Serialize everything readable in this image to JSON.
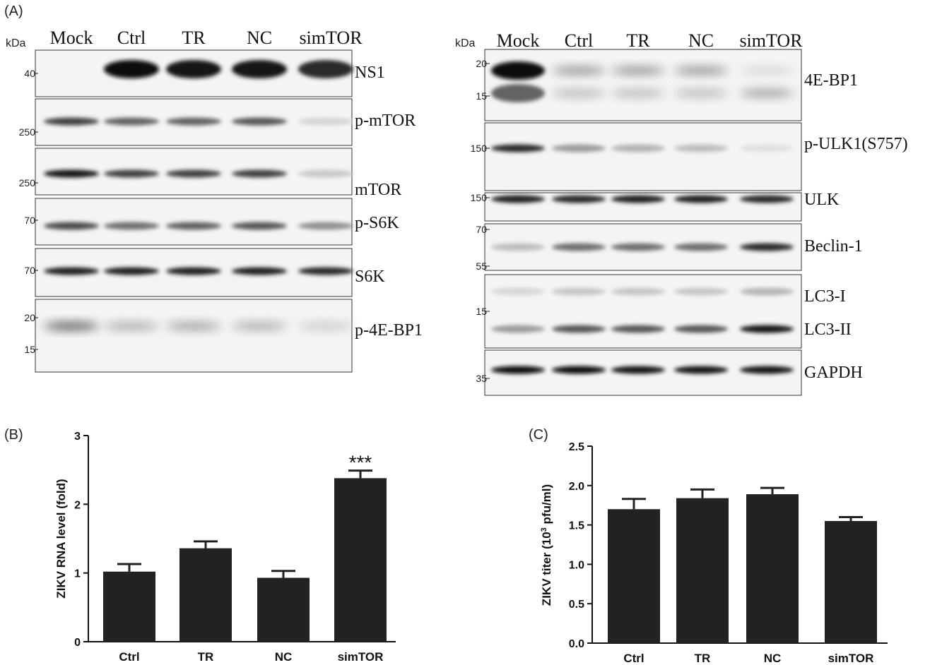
{
  "panels": {
    "a": {
      "label": "(A)"
    },
    "b": {
      "label": "(B)"
    },
    "c": {
      "label": "(C)"
    }
  },
  "western_left": {
    "kda_label": "kDa",
    "lanes": [
      "Mock",
      "Ctrl",
      "TR",
      "NC",
      "simTOR"
    ],
    "blots": [
      {
        "name": "NS1",
        "markers": [
          {
            "label": "40",
            "value": 40
          }
        ],
        "intensity": [
          0.0,
          1.0,
          0.95,
          0.95,
          0.85
        ]
      },
      {
        "name": "p-mTOR",
        "markers": [
          {
            "label": "250",
            "value": 250
          }
        ],
        "intensity": [
          0.75,
          0.6,
          0.6,
          0.65,
          0.1
        ]
      },
      {
        "name": "mTOR",
        "markers": [
          {
            "label": "250",
            "value": 250
          }
        ],
        "intensity": [
          0.95,
          0.75,
          0.75,
          0.75,
          0.15
        ]
      },
      {
        "name": "p-S6K",
        "markers": [
          {
            "label": "70",
            "value": 70
          }
        ],
        "intensity": [
          0.7,
          0.55,
          0.6,
          0.65,
          0.4
        ]
      },
      {
        "name": "S6K",
        "markers": [
          {
            "label": "70",
            "value": 70
          }
        ],
        "intensity": [
          0.9,
          0.9,
          0.9,
          0.9,
          0.85
        ]
      },
      {
        "name": "p-4E-BP1",
        "markers": [
          {
            "label": "20",
            "value": 20
          },
          {
            "label": "15",
            "value": 15
          }
        ],
        "intensity": [
          0.65,
          0.3,
          0.35,
          0.3,
          0.4
        ]
      }
    ]
  },
  "western_right": {
    "kda_label": "kDa",
    "lanes": [
      "Mock",
      "Ctrl",
      "TR",
      "NC",
      "simTOR"
    ],
    "blots": [
      {
        "name": "4E-BP1",
        "markers": [
          {
            "label": "20",
            "value": 20
          },
          {
            "label": "15",
            "value": 15
          }
        ],
        "intensity": [
          1.0,
          0.4,
          0.4,
          0.4,
          0.35
        ]
      },
      {
        "name": "p-ULK1(S757)",
        "markers": [
          {
            "label": "150",
            "value": 150
          }
        ],
        "intensity": [
          0.85,
          0.35,
          0.25,
          0.2,
          0.05
        ]
      },
      {
        "name": "ULK",
        "markers": [
          {
            "label": "150",
            "value": 150
          }
        ],
        "intensity": [
          0.9,
          0.85,
          0.9,
          0.9,
          0.85
        ]
      },
      {
        "name": "Beclin-1",
        "markers": [
          {
            "label": "70",
            "value": 70
          },
          {
            "label": "55",
            "value": 55
          }
        ],
        "intensity": [
          0.2,
          0.55,
          0.55,
          0.55,
          0.85
        ]
      },
      {
        "name": "LC3-I",
        "second_name": "LC3-II",
        "markers": [
          {
            "label": "15",
            "value": 15
          }
        ],
        "intensity": [
          0.35,
          0.65,
          0.65,
          0.65,
          0.95
        ]
      },
      {
        "name": "GAPDH",
        "markers": [
          {
            "label": "35",
            "value": 35
          }
        ],
        "intensity": [
          1.0,
          1.0,
          0.95,
          0.95,
          0.95
        ]
      }
    ]
  },
  "chart_data": [
    {
      "type": "bar",
      "categories": [
        "Ctrl",
        "TR",
        "NC",
        "simTOR"
      ],
      "values": [
        1.02,
        1.36,
        0.93,
        2.38
      ],
      "errors": [
        0.11,
        0.1,
        0.1,
        0.11
      ],
      "annotations": [
        "",
        "",
        "",
        "***"
      ],
      "ylabel": "ZIKV RNA level (fold)",
      "ylim": [
        0,
        3
      ],
      "yticks": [
        "0",
        "1",
        "2",
        "3"
      ],
      "bar_color": "#222222"
    },
    {
      "type": "bar",
      "categories": [
        "Ctrl",
        "TR",
        "NC",
        "simTOR"
      ],
      "values": [
        1.7,
        1.84,
        1.89,
        1.55
      ],
      "errors": [
        0.13,
        0.11,
        0.08,
        0.05
      ],
      "ylabel_prefix": "ZIKV titer (10",
      "ylabel_sup": "3",
      "ylabel_suffix": " pfu/ml)",
      "ylim": [
        0,
        2.5
      ],
      "yticks": [
        "0.0",
        "0.5",
        "1.0",
        "1.5",
        "2.0",
        "2.5"
      ],
      "bar_color": "#222222"
    }
  ]
}
